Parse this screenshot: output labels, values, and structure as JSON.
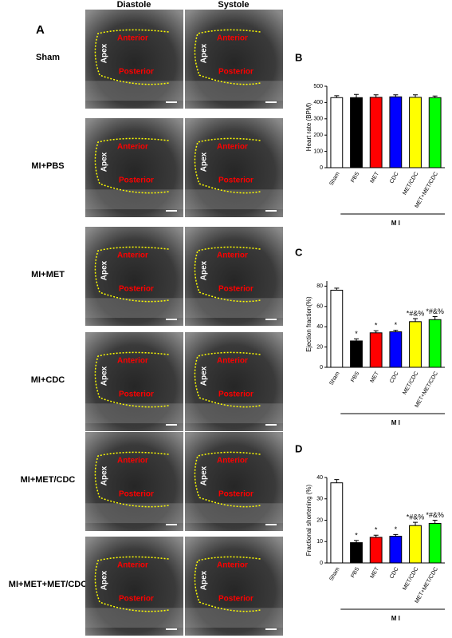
{
  "panel_a": {
    "label": "A",
    "columns": [
      "Diastole",
      "Systole"
    ],
    "rows": [
      "Sham",
      "MI+PBS",
      "MI+MET",
      "MI+CDC",
      "MI+MET/CDC",
      "MI+MET+MET/CDC"
    ],
    "image_labels": {
      "apex": "Apex",
      "anterior": "Anterior",
      "posterior": "Posterior"
    }
  },
  "chart_data": [
    {
      "type": "bar",
      "panel_label": "B",
      "y_label": "Heart rate (BPM)",
      "group_label": "M I",
      "categories": [
        "Sham",
        "PBS",
        "MET",
        "CDC",
        "MET/CDC",
        "MET+MET/CDC"
      ],
      "values": [
        430,
        430,
        432,
        435,
        432,
        430
      ],
      "errors": [
        12,
        20,
        15,
        12,
        15,
        10
      ],
      "colors": [
        "#ffffff",
        "#000000",
        "#ff0000",
        "#0000ff",
        "#ffff00",
        "#00ff00"
      ],
      "ylim": [
        0,
        500
      ],
      "yticks": [
        0,
        100,
        200,
        300,
        400,
        500
      ]
    },
    {
      "type": "bar",
      "panel_label": "C",
      "y_label": "Ejection fraction(%)",
      "group_label": "M I",
      "categories": [
        "Sham",
        "PBS",
        "MET",
        "CDC",
        "MET/CDC",
        "MET+MET/CDC"
      ],
      "values": [
        76,
        26,
        34,
        35,
        45,
        47
      ],
      "errors": [
        2,
        2,
        2,
        1.5,
        3,
        3
      ],
      "annotations": [
        null,
        "*",
        "*",
        "*",
        "*#&%",
        "*#&%"
      ],
      "colors": [
        "#ffffff",
        "#000000",
        "#ff0000",
        "#0000ff",
        "#ffff00",
        "#00ff00"
      ],
      "ylim": [
        0,
        85
      ],
      "yticks": [
        0,
        20,
        40,
        60,
        80
      ]
    },
    {
      "type": "bar",
      "panel_label": "D",
      "y_label": "Fractional shortening (%)",
      "group_label": "M I",
      "categories": [
        "Sham",
        "PBS",
        "MET",
        "CDC",
        "MET/CDC",
        "MET+MET/CDC"
      ],
      "values": [
        37.5,
        9.5,
        12,
        12.5,
        17.5,
        18.5
      ],
      "errors": [
        1.5,
        1,
        1,
        0.8,
        1.5,
        1.5
      ],
      "annotations": [
        null,
        "*",
        "*",
        "*",
        "*#&%",
        "*#&%"
      ],
      "colors": [
        "#ffffff",
        "#000000",
        "#ff0000",
        "#0000ff",
        "#ffff00",
        "#00ff00"
      ],
      "ylim": [
        0,
        40
      ],
      "yticks": [
        0,
        10,
        20,
        30,
        40
      ]
    }
  ]
}
